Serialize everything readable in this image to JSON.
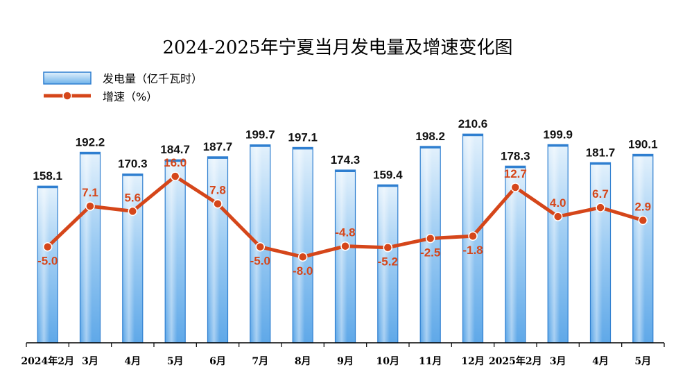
{
  "chart_data": {
    "type": "bar",
    "title": "2024-2025年宁夏当月发电量及增速变化图",
    "categories": [
      "2024年2月",
      "3月",
      "4月",
      "5月",
      "6月",
      "7月",
      "8月",
      "9月",
      "10月",
      "11月",
      "12月",
      "2025年2月",
      "3月",
      "4月",
      "5月"
    ],
    "series": [
      {
        "name": "发电量（亿千瓦时）",
        "type": "bar",
        "color": "#6fb3ea",
        "values": [
          158.1,
          192.2,
          170.3,
          184.7,
          187.7,
          199.7,
          197.1,
          174.3,
          159.4,
          198.2,
          210.6,
          178.3,
          199.9,
          181.7,
          190.1
        ]
      },
      {
        "name": "增速（%）",
        "type": "line",
        "color": "#d5461a",
        "values": [
          -5.0,
          7.1,
          5.6,
          16.0,
          7.8,
          -5.0,
          -8.0,
          -4.8,
          -5.2,
          -2.5,
          -1.8,
          12.7,
          4.0,
          6.7,
          2.9
        ]
      }
    ],
    "legend_position": "top-left",
    "grid": false
  }
}
